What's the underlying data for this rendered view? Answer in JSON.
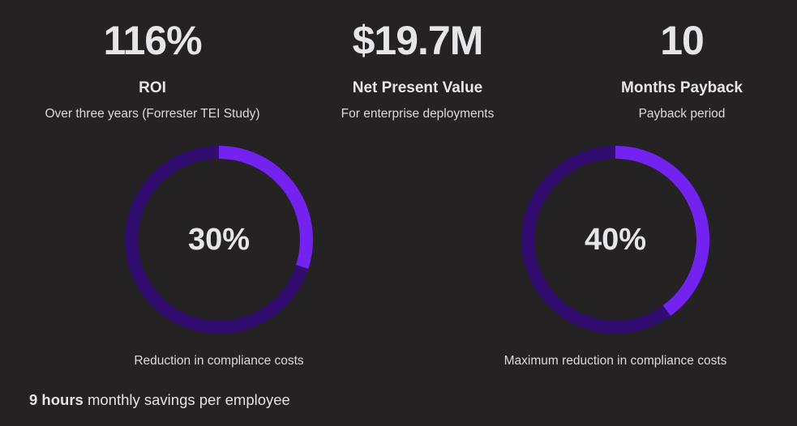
{
  "stats": [
    {
      "value": "116%",
      "label": "ROI",
      "description": "Over three years (Forrester TEI Study)"
    },
    {
      "value": "$19.7M",
      "label": "Net Present Value",
      "description": "For enterprise deployments"
    },
    {
      "value": "10",
      "label": "Months Payback",
      "description": "Payback period"
    }
  ],
  "chart_data": [
    {
      "type": "pie",
      "values": [
        30,
        70
      ],
      "center_label": "30%",
      "caption": "Reduction in compliance costs"
    },
    {
      "type": "pie",
      "values": [
        40,
        60
      ],
      "center_label": "40%",
      "caption": "Maximum reduction in compliance costs"
    }
  ],
  "colors": {
    "background": "#242223",
    "ring_fill": "#7422f0",
    "ring_track": "#320d70"
  },
  "footer": {
    "highlight": "9 hours",
    "text": " monthly savings per employee"
  }
}
